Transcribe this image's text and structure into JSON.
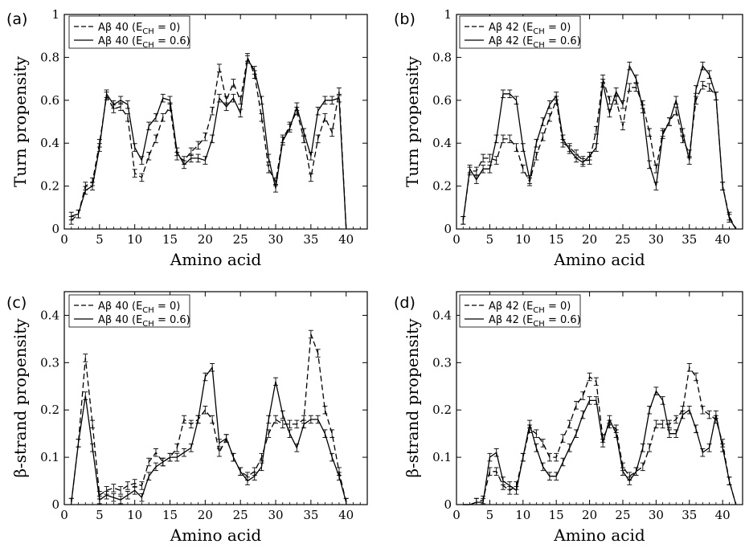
{
  "chart_data": [
    {
      "panel": "(a)",
      "type": "line",
      "xlabel": "Amino acid",
      "ylabel": "Turn propensity",
      "xlim": [
        0,
        43
      ],
      "ylim": [
        0,
        1
      ],
      "xticks": [
        "0",
        "5",
        "10",
        "15",
        "20",
        "25",
        "30",
        "35",
        "40"
      ],
      "yticks": [
        "0",
        "0.2",
        "0.4",
        "0.6",
        "0.8",
        "1"
      ],
      "legend_position": "top-left",
      "series": [
        {
          "name": "Aβ 40 (E",
          "sub": "CH",
          "suffix": " = 0)",
          "style": "dashed",
          "x": [
            1,
            2,
            3,
            4,
            5,
            6,
            7,
            8,
            9,
            10,
            11,
            12,
            13,
            14,
            15,
            16,
            17,
            18,
            19,
            20,
            21,
            22,
            23,
            24,
            25,
            26,
            27,
            28,
            29,
            30,
            31,
            32,
            33,
            34,
            35,
            36,
            37,
            38,
            39,
            40
          ],
          "y": [
            0.04,
            0.07,
            0.2,
            0.22,
            0.4,
            0.62,
            0.56,
            0.57,
            0.52,
            0.26,
            0.24,
            0.34,
            0.42,
            0.52,
            0.57,
            0.34,
            0.32,
            0.36,
            0.39,
            0.43,
            0.55,
            0.75,
            0.6,
            0.68,
            0.6,
            0.8,
            0.72,
            0.52,
            0.28,
            0.22,
            0.42,
            0.48,
            0.55,
            0.42,
            0.24,
            0.42,
            0.52,
            0.45,
            0.64,
            0.0
          ]
        },
        {
          "name": "Aβ 40 (E",
          "sub": "CH",
          "suffix": " = 0.6)",
          "style": "solid",
          "x": [
            1,
            2,
            3,
            4,
            5,
            6,
            7,
            8,
            9,
            10,
            11,
            12,
            13,
            14,
            15,
            16,
            17,
            18,
            19,
            20,
            21,
            22,
            23,
            24,
            25,
            26,
            27,
            28,
            29,
            30,
            31,
            32,
            33,
            34,
            35,
            36,
            37,
            38,
            39,
            40
          ],
          "y": [
            0.06,
            0.07,
            0.18,
            0.2,
            0.38,
            0.63,
            0.58,
            0.6,
            0.58,
            0.38,
            0.32,
            0.48,
            0.52,
            0.61,
            0.6,
            0.36,
            0.3,
            0.33,
            0.33,
            0.32,
            0.42,
            0.61,
            0.57,
            0.61,
            0.54,
            0.79,
            0.74,
            0.6,
            0.33,
            0.19,
            0.41,
            0.47,
            0.57,
            0.45,
            0.34,
            0.55,
            0.6,
            0.6,
            0.61,
            0.0
          ]
        }
      ]
    },
    {
      "panel": "(b)",
      "type": "line",
      "xlabel": "Amino acid",
      "ylabel": "Turn propensity",
      "xlim": [
        0,
        43
      ],
      "ylim": [
        0,
        1
      ],
      "xticks": [
        "0",
        "5",
        "10",
        "15",
        "20",
        "25",
        "30",
        "35",
        "40"
      ],
      "yticks": [
        "0",
        "0.2",
        "0.4",
        "0.6",
        "0.8",
        "1"
      ],
      "legend_position": "top-left",
      "series": [
        {
          "name": "Aβ 42 (E",
          "sub": "CH",
          "suffix": " = 0)",
          "style": "dashed",
          "x": [
            1,
            2,
            3,
            4,
            5,
            6,
            7,
            8,
            9,
            10,
            11,
            12,
            13,
            14,
            15,
            16,
            17,
            18,
            19,
            20,
            21,
            22,
            23,
            24,
            25,
            26,
            27,
            28,
            29,
            30,
            31,
            32,
            33,
            34,
            35,
            36,
            37,
            38,
            39,
            40,
            41,
            42
          ],
          "y": [
            0.04,
            0.27,
            0.27,
            0.33,
            0.33,
            0.32,
            0.42,
            0.42,
            0.38,
            0.28,
            0.22,
            0.34,
            0.43,
            0.52,
            0.6,
            0.4,
            0.38,
            0.35,
            0.32,
            0.32,
            0.46,
            0.7,
            0.6,
            0.6,
            0.48,
            0.66,
            0.66,
            0.58,
            0.45,
            0.28,
            0.45,
            0.5,
            0.55,
            0.42,
            0.35,
            0.6,
            0.67,
            0.66,
            0.62,
            0.2,
            0.06,
            0.0
          ]
        },
        {
          "name": "Aβ 42 (E",
          "sub": "CH",
          "suffix": " = 0.6)",
          "style": "solid",
          "x": [
            1,
            2,
            3,
            4,
            5,
            6,
            7,
            8,
            9,
            10,
            11,
            12,
            13,
            14,
            15,
            16,
            17,
            18,
            19,
            20,
            21,
            22,
            23,
            24,
            25,
            26,
            27,
            28,
            29,
            30,
            31,
            32,
            33,
            34,
            35,
            36,
            37,
            38,
            39,
            40,
            41,
            42
          ],
          "y": [
            0.04,
            0.28,
            0.23,
            0.28,
            0.28,
            0.42,
            0.63,
            0.63,
            0.6,
            0.38,
            0.23,
            0.4,
            0.5,
            0.58,
            0.62,
            0.42,
            0.37,
            0.33,
            0.31,
            0.34,
            0.38,
            0.68,
            0.54,
            0.64,
            0.58,
            0.76,
            0.7,
            0.56,
            0.3,
            0.2,
            0.44,
            0.5,
            0.6,
            0.45,
            0.32,
            0.65,
            0.76,
            0.72,
            0.62,
            0.2,
            0.05,
            0.0
          ]
        }
      ]
    },
    {
      "panel": "(c)",
      "type": "line",
      "xlabel": "Amino acid",
      "ylabel": "β-strand propensity",
      "xlim": [
        0,
        43
      ],
      "ylim": [
        0,
        0.45
      ],
      "xticks": [
        "0",
        "5",
        "10",
        "15",
        "20",
        "25",
        "30",
        "35",
        "40"
      ],
      "yticks": [
        "0",
        "0.1",
        "0.2",
        "0.3",
        "0.4"
      ],
      "legend_position": "top-left",
      "series": [
        {
          "name": "Aβ 40 (E",
          "sub": "CH",
          "suffix": " = 0)",
          "style": "dashed",
          "x": [
            1,
            2,
            3,
            4,
            5,
            6,
            7,
            8,
            9,
            10,
            11,
            12,
            13,
            14,
            15,
            16,
            17,
            18,
            19,
            20,
            21,
            22,
            23,
            24,
            25,
            26,
            27,
            28,
            29,
            30,
            31,
            32,
            33,
            34,
            35,
            36,
            37,
            38,
            39,
            40
          ],
          "y": [
            0.005,
            0.13,
            0.31,
            0.17,
            0.02,
            0.03,
            0.035,
            0.03,
            0.04,
            0.045,
            0.04,
            0.09,
            0.11,
            0.09,
            0.1,
            0.12,
            0.18,
            0.17,
            0.18,
            0.2,
            0.18,
            0.11,
            0.14,
            0.1,
            0.07,
            0.06,
            0.07,
            0.1,
            0.15,
            0.18,
            0.17,
            0.17,
            0.17,
            0.18,
            0.36,
            0.32,
            0.2,
            0.15,
            0.07,
            0.005
          ]
        },
        {
          "name": "Aβ 40 (E",
          "sub": "CH",
          "suffix": " = 0.6)",
          "style": "solid",
          "x": [
            1,
            2,
            3,
            4,
            5,
            6,
            7,
            8,
            9,
            10,
            11,
            12,
            13,
            14,
            15,
            16,
            17,
            18,
            19,
            20,
            21,
            22,
            23,
            24,
            25,
            26,
            27,
            28,
            29,
            30,
            31,
            32,
            33,
            34,
            35,
            36,
            37,
            38,
            39,
            40
          ],
          "y": [
            0.005,
            0.13,
            0.23,
            0.12,
            0.01,
            0.02,
            0.015,
            0.01,
            0.02,
            0.03,
            0.015,
            0.06,
            0.08,
            0.09,
            0.1,
            0.1,
            0.11,
            0.12,
            0.18,
            0.27,
            0.29,
            0.13,
            0.14,
            0.1,
            0.07,
            0.05,
            0.06,
            0.08,
            0.18,
            0.26,
            0.19,
            0.15,
            0.12,
            0.17,
            0.18,
            0.18,
            0.15,
            0.1,
            0.06,
            0.005
          ]
        }
      ]
    },
    {
      "panel": "(d)",
      "type": "line",
      "xlabel": "Amino acid",
      "ylabel": "β-strand propensity",
      "xlim": [
        0,
        43
      ],
      "ylim": [
        0,
        0.45
      ],
      "xticks": [
        "0",
        "5",
        "10",
        "15",
        "20",
        "25",
        "30",
        "35",
        "40"
      ],
      "yticks": [
        "0",
        "0.1",
        "0.2",
        "0.3",
        "0.4"
      ],
      "legend_position": "top-left",
      "series": [
        {
          "name": "Aβ 42 (E",
          "sub": "CH",
          "suffix": " = 0)",
          "style": "dashed",
          "x": [
            1,
            2,
            3,
            4,
            5,
            6,
            7,
            8,
            9,
            10,
            11,
            12,
            13,
            14,
            15,
            16,
            17,
            18,
            19,
            20,
            21,
            22,
            23,
            24,
            25,
            26,
            27,
            28,
            29,
            30,
            31,
            32,
            33,
            34,
            35,
            36,
            37,
            38,
            39,
            40,
            41,
            42
          ],
          "y": [
            0.0,
            0.0,
            0.005,
            0.01,
            0.07,
            0.07,
            0.04,
            0.03,
            0.04,
            0.1,
            0.16,
            0.15,
            0.13,
            0.1,
            0.1,
            0.14,
            0.17,
            0.21,
            0.23,
            0.27,
            0.26,
            0.14,
            0.17,
            0.16,
            0.08,
            0.06,
            0.07,
            0.08,
            0.12,
            0.17,
            0.17,
            0.17,
            0.18,
            0.2,
            0.29,
            0.27,
            0.2,
            0.19,
            0.18,
            0.13,
            0.05,
            0.0
          ]
        },
        {
          "name": "Aβ 42 (E",
          "sub": "CH",
          "suffix": " = 0.6)",
          "style": "solid",
          "x": [
            1,
            2,
            3,
            4,
            5,
            6,
            7,
            8,
            9,
            10,
            11,
            12,
            13,
            14,
            15,
            16,
            17,
            18,
            19,
            20,
            21,
            22,
            23,
            24,
            25,
            26,
            27,
            28,
            29,
            30,
            31,
            32,
            33,
            34,
            35,
            36,
            37,
            38,
            39,
            40,
            41,
            42
          ],
          "y": [
            0.0,
            0.0,
            0.005,
            0.005,
            0.1,
            0.11,
            0.05,
            0.04,
            0.03,
            0.1,
            0.17,
            0.12,
            0.08,
            0.06,
            0.06,
            0.09,
            0.12,
            0.15,
            0.19,
            0.22,
            0.22,
            0.13,
            0.18,
            0.15,
            0.07,
            0.05,
            0.07,
            0.12,
            0.2,
            0.24,
            0.22,
            0.15,
            0.15,
            0.19,
            0.2,
            0.16,
            0.11,
            0.12,
            0.19,
            0.12,
            0.05,
            0.0
          ]
        }
      ]
    }
  ]
}
